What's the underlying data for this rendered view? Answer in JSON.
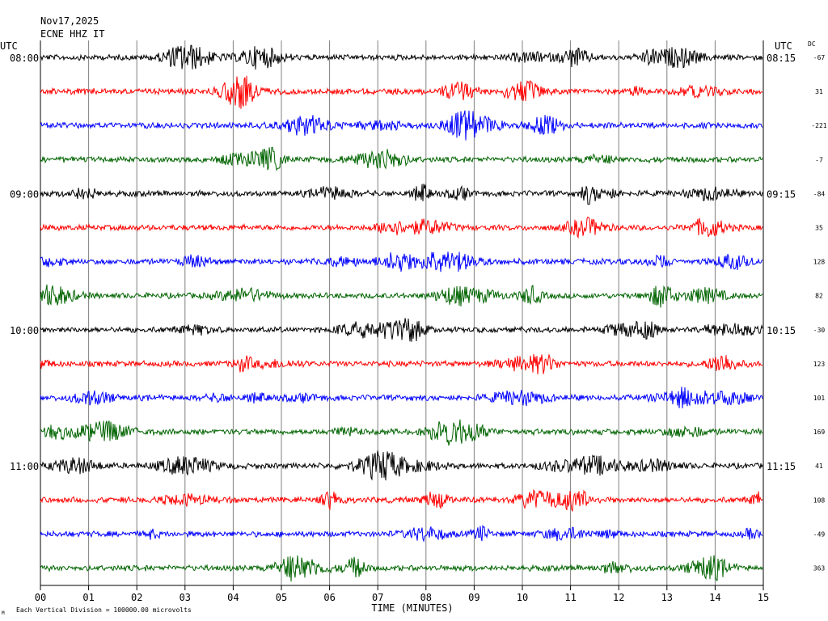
{
  "header": {
    "date": "Nov17,2025",
    "station": "ECNE HHZ IT"
  },
  "labels": {
    "utc_left": "UTC",
    "utc_right": "UTC",
    "dc": "DC",
    "xlabel": "TIME (MINUTES)",
    "footer_mark": "M",
    "footer_note": "Each Vertical Division = 100000.00 microvolts"
  },
  "chart_data": {
    "type": "line",
    "title": "",
    "xlabel": "TIME (MINUTES)",
    "xlim": [
      0,
      15
    ],
    "x_ticks": [
      "00",
      "01",
      "02",
      "03",
      "04",
      "05",
      "06",
      "07",
      "08",
      "09",
      "10",
      "11",
      "12",
      "13",
      "14",
      "15"
    ],
    "trace_colors": [
      "#000000",
      "#ff0000",
      "#0000ff",
      "#006400"
    ],
    "left_hour_labels": [
      "08:00",
      "09:00",
      "10:00",
      "11:00"
    ],
    "right_hour_labels": [
      "08:15",
      "09:15",
      "10:15",
      "11:15"
    ],
    "series": [
      {
        "values": [],
        "dc": "-67"
      },
      {
        "values": [],
        "dc": "31"
      },
      {
        "values": [],
        "dc": "-221"
      },
      {
        "values": [],
        "dc": "-7"
      },
      {
        "values": [],
        "dc": "-84"
      },
      {
        "values": [],
        "dc": "35"
      },
      {
        "values": [],
        "dc": "128"
      },
      {
        "values": [],
        "dc": "82"
      },
      {
        "values": [],
        "dc": "-30"
      },
      {
        "values": [],
        "dc": "123"
      },
      {
        "values": [],
        "dc": "101"
      },
      {
        "values": [],
        "dc": "169"
      },
      {
        "values": [],
        "dc": "41"
      },
      {
        "values": [],
        "dc": "108"
      },
      {
        "values": [],
        "dc": "-49"
      },
      {
        "values": [],
        "dc": "363"
      }
    ]
  }
}
